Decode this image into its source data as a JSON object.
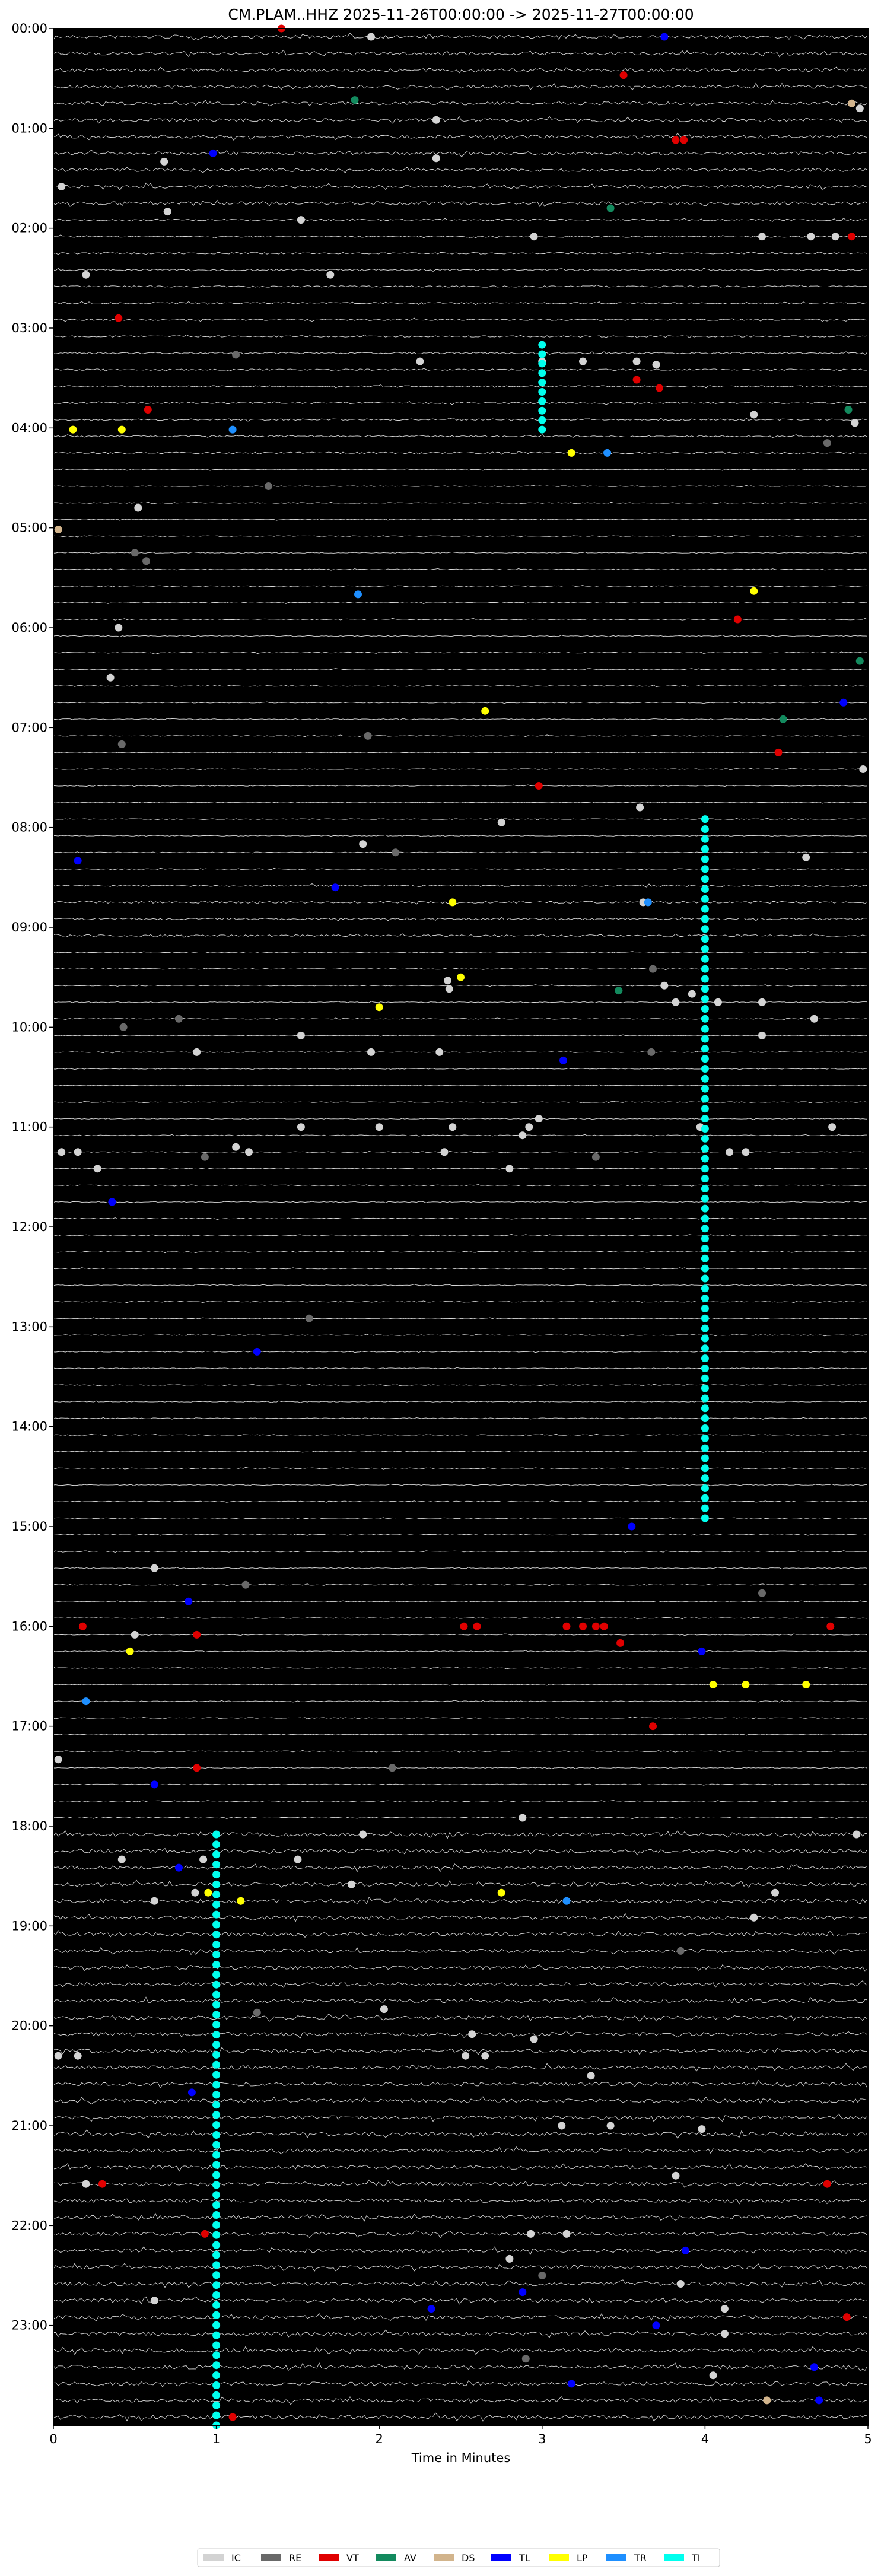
{
  "chart_data": {
    "type": "scatter",
    "subtype": "helicorder",
    "title": "CM.PLAM..HHZ  2025-11-26T00:00:00 -> 2025-11-27T00:00:00",
    "xlabel": "Time in Minutes",
    "ylabel": "",
    "xlim": [
      0,
      5
    ],
    "ylim_hours": [
      0,
      24
    ],
    "y_inverted": true,
    "background": "#000000",
    "trace_color": "#ffffff",
    "x_ticks": [
      "0",
      "1",
      "2",
      "3",
      "4",
      "5"
    ],
    "y_ticks": [
      "00:00",
      "01:00",
      "02:00",
      "03:00",
      "04:00",
      "05:00",
      "06:00",
      "07:00",
      "08:00",
      "09:00",
      "10:00",
      "11:00",
      "12:00",
      "13:00",
      "14:00",
      "15:00",
      "16:00",
      "17:00",
      "18:00",
      "19:00",
      "20:00",
      "21:00",
      "22:00",
      "23:00"
    ],
    "legend_position": "bottom-center",
    "legend": [
      {
        "code": "IC",
        "color": "#d3d3d3"
      },
      {
        "code": "RE",
        "color": "#696969"
      },
      {
        "code": "VT",
        "color": "#e00000"
      },
      {
        "code": "AV",
        "color": "#138a5e"
      },
      {
        "code": "DS",
        "color": "#d2b48c"
      },
      {
        "code": "TL",
        "color": "#0000ff"
      },
      {
        "code": "LP",
        "color": "#ffff00"
      },
      {
        "code": "TR",
        "color": "#1e8fff"
      },
      {
        "code": "TI",
        "color": "#00ffee"
      }
    ],
    "events": [
      {
        "c": "IC",
        "t": "00:05",
        "x": 1.95
      },
      {
        "c": "VT",
        "t": "00:28",
        "x": 3.5
      },
      {
        "c": "AV",
        "t": "00:43",
        "x": 1.85
      },
      {
        "c": "DS",
        "t": "00:45",
        "x": 4.9
      },
      {
        "c": "IC",
        "t": "00:55",
        "x": 2.35
      },
      {
        "c": "IC",
        "t": "00:48",
        "x": 4.95
      },
      {
        "c": "VT",
        "t": "01:07",
        "x": 3.82
      },
      {
        "c": "VT",
        "t": "01:07",
        "x": 3.87
      },
      {
        "c": "TL",
        "t": "01:15",
        "x": 0.98
      },
      {
        "c": "IC",
        "t": "01:20",
        "x": 0.68
      },
      {
        "c": "IC",
        "t": "01:35",
        "x": 0.05
      },
      {
        "c": "IC",
        "t": "01:18",
        "x": 2.35
      },
      {
        "c": "IC",
        "t": "01:50",
        "x": 0.7
      },
      {
        "c": "IC",
        "t": "01:55",
        "x": 1.52
      },
      {
        "c": "AV",
        "t": "01:48",
        "x": 3.42
      },
      {
        "c": "IC",
        "t": "02:05",
        "x": 4.35
      },
      {
        "c": "IC",
        "t": "02:05",
        "x": 4.65
      },
      {
        "c": "VT",
        "t": "02:05",
        "x": 4.9
      },
      {
        "c": "IC",
        "t": "02:05",
        "x": 4.8
      },
      {
        "c": "IC",
        "t": "02:05",
        "x": 2.95
      },
      {
        "c": "IC",
        "t": "02:28",
        "x": 0.2
      },
      {
        "c": "IC",
        "t": "02:28",
        "x": 1.7
      },
      {
        "c": "VT",
        "t": "02:54",
        "x": 0.4
      },
      {
        "c": "RE",
        "t": "03:16",
        "x": 1.12
      },
      {
        "c": "IC",
        "t": "03:20",
        "x": 2.25
      },
      {
        "c": "IC",
        "t": "03:20",
        "x": 3.0
      },
      {
        "c": "IC",
        "t": "03:20",
        "x": 3.25
      },
      {
        "c": "IC",
        "t": "03:20",
        "x": 3.58
      },
      {
        "c": "IC",
        "t": "03:22",
        "x": 3.7
      },
      {
        "c": "VT",
        "t": "03:31",
        "x": 3.58
      },
      {
        "c": "VT",
        "t": "03:36",
        "x": 3.72
      },
      {
        "c": "VT",
        "t": "03:49",
        "x": 0.58
      },
      {
        "c": "IC",
        "t": "03:52",
        "x": 4.3
      },
      {
        "c": "AV",
        "t": "03:49",
        "x": 4.88
      },
      {
        "c": "IC",
        "t": "03:57",
        "x": 4.92
      },
      {
        "c": "LP",
        "t": "04:01",
        "x": 0.12
      },
      {
        "c": "LP",
        "t": "04:01",
        "x": 0.42
      },
      {
        "c": "TR",
        "t": "04:01",
        "x": 1.1
      },
      {
        "c": "RE",
        "t": "04:09",
        "x": 4.75
      },
      {
        "c": "LP",
        "t": "04:15",
        "x": 3.18
      },
      {
        "c": "TR",
        "t": "04:15",
        "x": 3.4
      },
      {
        "c": "RE",
        "t": "04:35",
        "x": 1.32
      },
      {
        "c": "IC",
        "t": "04:48",
        "x": 0.52
      },
      {
        "c": "DS",
        "t": "05:01",
        "x": 0.03
      },
      {
        "c": "RE",
        "t": "05:15",
        "x": 0.5
      },
      {
        "c": "RE",
        "t": "05:20",
        "x": 0.57
      },
      {
        "c": "TR",
        "t": "05:40",
        "x": 1.87
      },
      {
        "c": "LP",
        "t": "05:38",
        "x": 4.3
      },
      {
        "c": "VT",
        "t": "05:55",
        "x": 4.2
      },
      {
        "c": "IC",
        "t": "06:00",
        "x": 0.4
      },
      {
        "c": "AV",
        "t": "06:20",
        "x": 4.95
      },
      {
        "c": "IC",
        "t": "06:30",
        "x": 0.35
      },
      {
        "c": "TL",
        "t": "06:45",
        "x": 4.85
      },
      {
        "c": "LP",
        "t": "06:50",
        "x": 2.65
      },
      {
        "c": "AV",
        "t": "06:55",
        "x": 4.48
      },
      {
        "c": "RE",
        "t": "07:05",
        "x": 1.93
      },
      {
        "c": "RE",
        "t": "07:10",
        "x": 0.42
      },
      {
        "c": "VT",
        "t": "07:15",
        "x": 4.45
      },
      {
        "c": "IC",
        "t": "07:25",
        "x": 4.97
      },
      {
        "c": "VT",
        "t": "07:35",
        "x": 2.98
      },
      {
        "c": "IC",
        "t": "07:48",
        "x": 3.6
      },
      {
        "c": "IC",
        "t": "07:57",
        "x": 2.75
      },
      {
        "c": "IC",
        "t": "08:10",
        "x": 1.9
      },
      {
        "c": "RE",
        "t": "08:15",
        "x": 2.1
      },
      {
        "c": "TL",
        "t": "08:20",
        "x": 0.15
      },
      {
        "c": "IC",
        "t": "08:18",
        "x": 4.62
      },
      {
        "c": "TL",
        "t": "08:36",
        "x": 1.73
      },
      {
        "c": "IC",
        "t": "08:45",
        "x": 3.62
      },
      {
        "c": "TR",
        "t": "08:45",
        "x": 3.65
      },
      {
        "c": "LP",
        "t": "08:45",
        "x": 2.45
      },
      {
        "c": "LP",
        "t": "09:30",
        "x": 2.5
      },
      {
        "c": "IC",
        "t": "09:32",
        "x": 2.42
      },
      {
        "c": "IC",
        "t": "09:37",
        "x": 2.43
      },
      {
        "c": "RE",
        "t": "09:25",
        "x": 3.68
      },
      {
        "c": "AV",
        "t": "09:38",
        "x": 3.47
      },
      {
        "c": "IC",
        "t": "09:35",
        "x": 3.75
      },
      {
        "c": "IC",
        "t": "09:45",
        "x": 3.82
      },
      {
        "c": "IC",
        "t": "09:40",
        "x": 3.92
      },
      {
        "c": "IC",
        "t": "09:45",
        "x": 4.08
      },
      {
        "c": "LP",
        "t": "09:48",
        "x": 2.0
      },
      {
        "c": "IC",
        "t": "09:45",
        "x": 4.35
      },
      {
        "c": "RE",
        "t": "09:55",
        "x": 0.77
      },
      {
        "c": "IC",
        "t": "09:55",
        "x": 4.67
      },
      {
        "c": "RE",
        "t": "10:00",
        "x": 0.43
      },
      {
        "c": "IC",
        "t": "10:05",
        "x": 1.52
      },
      {
        "c": "IC",
        "t": "10:05",
        "x": 4.35
      },
      {
        "c": "IC",
        "t": "10:15",
        "x": 0.88
      },
      {
        "c": "IC",
        "t": "10:15",
        "x": 1.95
      },
      {
        "c": "IC",
        "t": "10:15",
        "x": 2.37
      },
      {
        "c": "RE",
        "t": "10:15",
        "x": 3.67
      },
      {
        "c": "TL",
        "t": "10:20",
        "x": 3.13
      },
      {
        "c": "IC",
        "t": "11:00",
        "x": 1.52
      },
      {
        "c": "IC",
        "t": "11:00",
        "x": 2.0
      },
      {
        "c": "IC",
        "t": "11:00",
        "x": 2.45
      },
      {
        "c": "IC",
        "t": "11:00",
        "x": 2.92
      },
      {
        "c": "IC",
        "t": "11:00",
        "x": 3.97
      },
      {
        "c": "IC",
        "t": "11:00",
        "x": 4.78
      },
      {
        "c": "IC",
        "t": "10:55",
        "x": 2.98
      },
      {
        "c": "IC",
        "t": "11:05",
        "x": 2.88
      },
      {
        "c": "IC",
        "t": "11:12",
        "x": 1.12
      },
      {
        "c": "IC",
        "t": "11:15",
        "x": 0.05
      },
      {
        "c": "IC",
        "t": "11:15",
        "x": 0.15
      },
      {
        "c": "IC",
        "t": "11:15",
        "x": 1.2
      },
      {
        "c": "IC",
        "t": "11:15",
        "x": 2.4
      },
      {
        "c": "IC",
        "t": "11:15",
        "x": 4.15
      },
      {
        "c": "IC",
        "t": "11:15",
        "x": 4.25
      },
      {
        "c": "RE",
        "t": "11:18",
        "x": 0.93
      },
      {
        "c": "RE",
        "t": "11:18",
        "x": 3.33
      },
      {
        "c": "IC",
        "t": "11:25",
        "x": 0.27
      },
      {
        "c": "IC",
        "t": "11:25",
        "x": 2.8
      },
      {
        "c": "TL",
        "t": "11:45",
        "x": 0.36
      },
      {
        "c": "RE",
        "t": "12:55",
        "x": 1.57
      },
      {
        "c": "TL",
        "t": "13:15",
        "x": 1.25
      },
      {
        "c": "TL",
        "t": "15:00",
        "x": 3.55
      },
      {
        "c": "IC",
        "t": "15:25",
        "x": 0.62
      },
      {
        "c": "RE",
        "t": "15:35",
        "x": 1.18
      },
      {
        "c": "RE",
        "t": "15:40",
        "x": 4.35
      },
      {
        "c": "TL",
        "t": "15:45",
        "x": 0.83
      },
      {
        "c": "VT",
        "t": "16:00",
        "x": 0.18
      },
      {
        "c": "IC",
        "t": "16:05",
        "x": 0.5
      },
      {
        "c": "VT",
        "t": "16:05",
        "x": 0.88
      },
      {
        "c": "VT",
        "t": "16:00",
        "x": 2.52
      },
      {
        "c": "VT",
        "t": "16:00",
        "x": 2.6
      },
      {
        "c": "VT",
        "t": "16:00",
        "x": 3.15
      },
      {
        "c": "VT",
        "t": "16:00",
        "x": 3.25
      },
      {
        "c": "VT",
        "t": "16:00",
        "x": 3.33
      },
      {
        "c": "VT",
        "t": "16:00",
        "x": 3.38
      },
      {
        "c": "VT",
        "t": "16:10",
        "x": 3.48
      },
      {
        "c": "VT",
        "t": "16:00",
        "x": 4.77
      },
      {
        "c": "TL",
        "t": "16:15",
        "x": 3.98
      },
      {
        "c": "LP",
        "t": "16:15",
        "x": 0.47
      },
      {
        "c": "LP",
        "t": "16:35",
        "x": 4.05
      },
      {
        "c": "LP",
        "t": "16:35",
        "x": 4.25
      },
      {
        "c": "LP",
        "t": "16:35",
        "x": 4.62
      },
      {
        "c": "TR",
        "t": "16:45",
        "x": 0.2
      },
      {
        "c": "VT",
        "t": "17:00",
        "x": 3.68
      },
      {
        "c": "IC",
        "t": "17:20",
        "x": 0.03
      },
      {
        "c": "VT",
        "t": "17:25",
        "x": 0.88
      },
      {
        "c": "RE",
        "t": "17:25",
        "x": 2.08
      },
      {
        "c": "TL",
        "t": "17:35",
        "x": 0.62
      },
      {
        "c": "IC",
        "t": "17:55",
        "x": 2.88
      },
      {
        "c": "IC",
        "t": "18:05",
        "x": 1.9
      },
      {
        "c": "IC",
        "t": "18:05",
        "x": 4.93
      },
      {
        "c": "IC",
        "t": "18:20",
        "x": 0.42
      },
      {
        "c": "IC",
        "t": "18:20",
        "x": 0.92
      },
      {
        "c": "IC",
        "t": "18:20",
        "x": 1.5
      },
      {
        "c": "TL",
        "t": "18:25",
        "x": 0.77
      },
      {
        "c": "IC",
        "t": "18:35",
        "x": 1.83
      },
      {
        "c": "IC",
        "t": "18:40",
        "x": 0.87
      },
      {
        "c": "LP",
        "t": "18:40",
        "x": 0.95
      },
      {
        "c": "LP",
        "t": "18:45",
        "x": 1.15
      },
      {
        "c": "LP",
        "t": "18:40",
        "x": 2.75
      },
      {
        "c": "TR",
        "t": "18:45",
        "x": 3.15
      },
      {
        "c": "IC",
        "t": "18:40",
        "x": 4.43
      },
      {
        "c": "IC",
        "t": "18:45",
        "x": 0.62
      },
      {
        "c": "IC",
        "t": "18:55",
        "x": 4.3
      },
      {
        "c": "RE",
        "t": "19:15",
        "x": 3.85
      },
      {
        "c": "IC",
        "t": "19:50",
        "x": 2.03
      },
      {
        "c": "RE",
        "t": "19:52",
        "x": 1.25
      },
      {
        "c": "IC",
        "t": "20:05",
        "x": 2.57
      },
      {
        "c": "IC",
        "t": "20:08",
        "x": 2.95
      },
      {
        "c": "IC",
        "t": "20:18",
        "x": 0.03
      },
      {
        "c": "IC",
        "t": "20:18",
        "x": 0.15
      },
      {
        "c": "IC",
        "t": "20:18",
        "x": 2.53
      },
      {
        "c": "IC",
        "t": "20:18",
        "x": 2.65
      },
      {
        "c": "IC",
        "t": "20:30",
        "x": 3.3
      },
      {
        "c": "TL",
        "t": "20:40",
        "x": 0.85
      },
      {
        "c": "IC",
        "t": "21:00",
        "x": 3.12
      },
      {
        "c": "IC",
        "t": "21:00",
        "x": 3.42
      },
      {
        "c": "IC",
        "t": "21:02",
        "x": 3.98
      },
      {
        "c": "IC",
        "t": "21:35",
        "x": 0.2
      },
      {
        "c": "VT",
        "t": "21:35",
        "x": 0.3
      },
      {
        "c": "IC",
        "t": "21:30",
        "x": 3.82
      },
      {
        "c": "VT",
        "t": "21:35",
        "x": 4.75
      },
      {
        "c": "VT",
        "t": "22:05",
        "x": 0.93
      },
      {
        "c": "IC",
        "t": "22:05",
        "x": 2.93
      },
      {
        "c": "IC",
        "t": "22:05",
        "x": 3.15
      },
      {
        "c": "TL",
        "t": "22:15",
        "x": 3.88
      },
      {
        "c": "IC",
        "t": "22:20",
        "x": 2.8
      },
      {
        "c": "RE",
        "t": "22:30",
        "x": 3.0
      },
      {
        "c": "IC",
        "t": "22:35",
        "x": 3.85
      },
      {
        "c": "IC",
        "t": "22:45",
        "x": 0.62
      },
      {
        "c": "TL",
        "t": "22:40",
        "x": 2.88
      },
      {
        "c": "IC",
        "t": "22:50",
        "x": 4.12
      },
      {
        "c": "TL",
        "t": "22:50",
        "x": 2.32
      },
      {
        "c": "VT",
        "t": "22:55",
        "x": 4.87
      },
      {
        "c": "TL",
        "t": "23:00",
        "x": 3.7
      },
      {
        "c": "IC",
        "t": "23:05",
        "x": 4.12
      },
      {
        "c": "RE",
        "t": "23:20",
        "x": 2.9
      },
      {
        "c": "TL",
        "t": "23:25",
        "x": 4.67
      },
      {
        "c": "IC",
        "t": "23:30",
        "x": 4.05
      },
      {
        "c": "TL",
        "t": "23:35",
        "x": 3.18
      },
      {
        "c": "DS",
        "t": "23:45",
        "x": 4.38
      },
      {
        "c": "TL",
        "t": "23:45",
        "x": 4.7
      },
      {
        "c": "VT",
        "t": "23:55",
        "x": 1.1
      },
      {
        "c": "VT",
        "t": "00:00",
        "x": 1.4
      },
      {
        "c": "TL",
        "t": "00:05",
        "x": 3.75
      }
    ],
    "tremor_runs": [
      {
        "c": "TI",
        "x": 3.0,
        "start": "03:10",
        "end": "04:01"
      },
      {
        "c": "TI",
        "x": 4.0,
        "start": "07:55",
        "end": "14:55"
      },
      {
        "c": "TI",
        "x": 1.0,
        "start": "18:05",
        "end": "00:00",
        "end_next_day": true
      }
    ]
  }
}
